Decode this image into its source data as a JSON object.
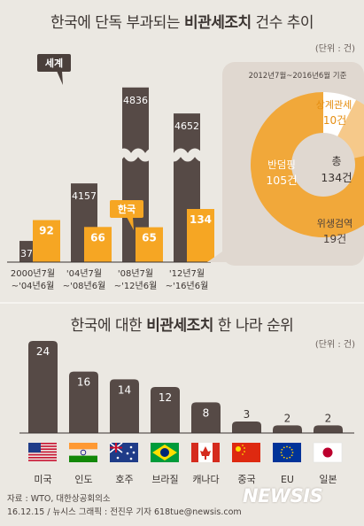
{
  "title1": {
    "pre": "한국에 단독 부과되는 ",
    "bold": "비관세조치",
    "post": " 건수 추이"
  },
  "unit1": "(단위 : 건)",
  "chart_data": [
    {
      "type": "bar",
      "categories": [
        [
          "2000년7월",
          "~'04년6월"
        ],
        [
          "'04년7월",
          "~'08년6월"
        ],
        [
          "'08년7월",
          "~'12년6월"
        ],
        [
          "'12년7월",
          "~'16년6월"
        ]
      ],
      "series": [
        {
          "name": "세계",
          "values": [
            3750,
            4157,
            4836,
            4652
          ]
        },
        {
          "name": "한국",
          "values": [
            92,
            66,
            65,
            134
          ]
        }
      ],
      "axis": "broken"
    },
    {
      "type": "pie",
      "subtitle": "2012년7월~2016년6월 기준",
      "center_label": [
        "총",
        "134건"
      ],
      "slices": [
        {
          "label": "반덤핑",
          "value": 105
        },
        {
          "label": "상계관세",
          "value": 10
        },
        {
          "label": "위생검역",
          "value": 19
        }
      ],
      "total": 134
    },
    {
      "type": "bar",
      "categories": [
        "미국",
        "인도",
        "호주",
        "브라질",
        "캐나다",
        "중국",
        "EU",
        "일본"
      ],
      "values": [
        24,
        16,
        14,
        12,
        8,
        3,
        2,
        2
      ]
    }
  ],
  "callouts": {
    "world": "세계",
    "korea": "한국"
  },
  "title2": {
    "pre": "한국에 대한 ",
    "bold": "비관세조치",
    "post": " 한 나라 순위"
  },
  "unit2": "(단위 : 건)",
  "source": [
    "자료 : WTO, 대한상공회의소",
    "16.12.15 / 뉴시스 그래픽 : 전진우 기자 618tue@newsis.com"
  ],
  "logo": "NEWSIS",
  "colors": {
    "bar_dark": "#564a46",
    "bar_orange": "#f6a623",
    "donut_orange": "#f1a83a",
    "donut_light": "#f6c98a",
    "panel": "#e0d8d0",
    "background": "#ebe8e2"
  }
}
